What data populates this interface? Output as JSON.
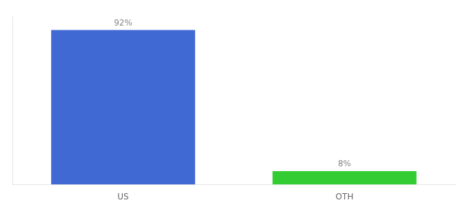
{
  "chart_data": {
    "type": "bar",
    "categories": [
      "US",
      "OTH"
    ],
    "values": [
      92,
      8
    ],
    "value_labels": [
      "92%",
      "8%"
    ],
    "colors": [
      "#4169d4",
      "#33cc33"
    ],
    "ylim": [
      0,
      100
    ],
    "data_labels": true,
    "grid": false,
    "tick_labels": "x"
  }
}
